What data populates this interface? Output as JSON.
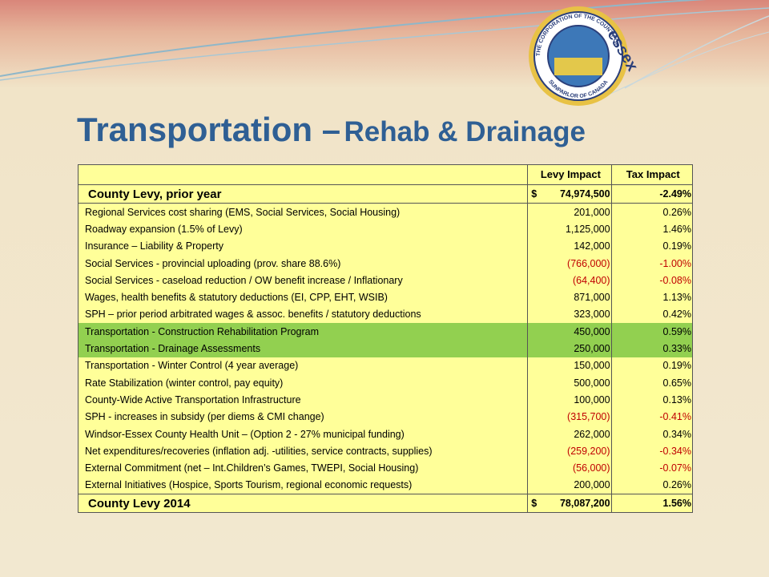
{
  "logo": {
    "ring_top": "THE CORPORATION OF THE COUNTY OF",
    "name": "essex",
    "ring_bottom": "SUNPARLOR OF CANADA"
  },
  "title": {
    "main": "Transportation –",
    "sub": "Rehab & Drainage"
  },
  "table": {
    "header": [
      "Levy Impact",
      "Tax Impact"
    ],
    "opening": {
      "label": "County Levy, prior year",
      "currency": "$",
      "levy": "74,974,500",
      "tax": "-2.49%"
    },
    "rows": [
      {
        "label": "Regional Services cost sharing (EMS, Social Services, Social Housing)",
        "levy": "201,000",
        "tax": "0.26%"
      },
      {
        "label": "Roadway expansion (1.5% of Levy)",
        "levy": "1,125,000",
        "tax": "1.46%"
      },
      {
        "label": "Insurance – Liability  & Property",
        "levy": "142,000",
        "tax": "0.19%"
      },
      {
        "label": "Social Services - provincial uploading (prov. share 88.6%)",
        "levy": "(766,000)",
        "tax": "-1.00%",
        "negative": true
      },
      {
        "label": "Social Services - caseload reduction / OW benefit increase / Inflationary",
        "levy": "(64,400)",
        "tax": "-0.08%",
        "negative": true
      },
      {
        "label": "Wages, health benefits & statutory deductions (EI, CPP, EHT, WSIB)",
        "levy": "871,000",
        "tax": "1.13%"
      },
      {
        "label": "SPH – prior period arbitrated wages & assoc. benefits / statutory deductions",
        "levy": "323,000",
        "tax": "0.42%"
      },
      {
        "label": "Transportation - Construction Rehabilitation Program",
        "levy": "450,000",
        "tax": "0.59%",
        "highlight": true
      },
      {
        "label": "Transportation - Drainage Assessments",
        "levy": "250,000",
        "tax": "0.33%",
        "highlight": true
      },
      {
        "label": "Transportation - Winter Control (4 year average)",
        "levy": "150,000",
        "tax": "0.19%"
      },
      {
        "label": "Rate Stabilization (winter control, pay equity)",
        "levy": "500,000",
        "tax": "0.65%"
      },
      {
        "label": "County-Wide Active Transportation Infrastructure",
        "levy": "100,000",
        "tax": "0.13%"
      },
      {
        "label": "SPH - increases in subsidy (per diems & CMI change)",
        "levy": "(315,700)",
        "tax": "-0.41%",
        "negative": true
      },
      {
        "label": "Windsor-Essex County Health Unit – (Option 2 - 27% municipal funding)",
        "levy": "262,000",
        "tax": "0.34%"
      },
      {
        "label": "Net expenditures/recoveries (inflation adj. -utilities, service contracts, supplies)",
        "levy": "(259,200)",
        "tax": "-0.34%",
        "negative": true
      },
      {
        "label": "External Commitment (net – Int.Children’s Games, TWEPI, Social Housing)",
        "levy": "(56,000)",
        "tax": "-0.07%",
        "negative": true
      },
      {
        "label": "External Initiatives (Hospice, Sports Tourism, regional economic requests)",
        "levy": "200,000",
        "tax": "0.26%"
      }
    ],
    "closing": {
      "label": "County Levy 2014",
      "currency": "$",
      "levy": "78,087,200",
      "tax": "1.56%"
    }
  }
}
